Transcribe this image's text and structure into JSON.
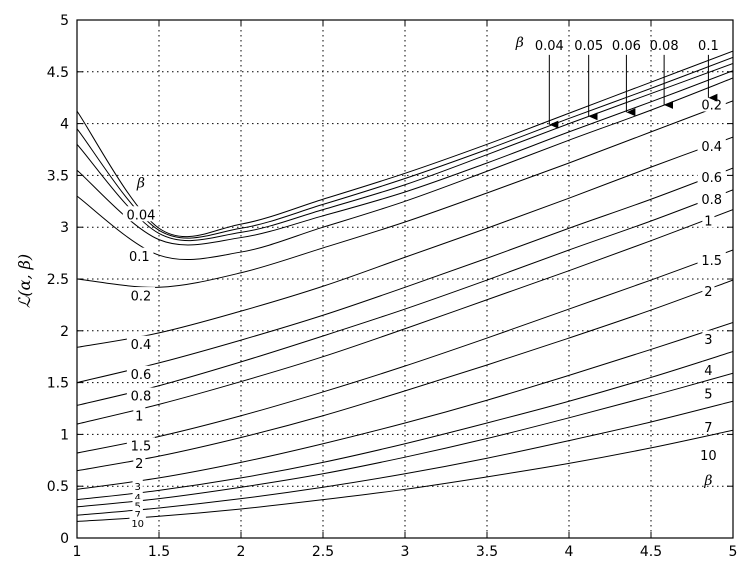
{
  "chart_data": {
    "type": "line",
    "title": "",
    "xlabel": "",
    "ylabel": "ℒ(α, β)",
    "xlim": [
      1,
      5
    ],
    "ylim": [
      0,
      5
    ],
    "grid": true,
    "x_ticks": [
      "1",
      "1.5",
      "2",
      "2.5",
      "3",
      "3.5",
      "4",
      "4.5",
      "5"
    ],
    "y_ticks": [
      "0",
      "0.5",
      "1",
      "1.5",
      "2",
      "2.5",
      "3",
      "3.5",
      "4",
      "4.5",
      "5"
    ],
    "beta_symbol": "β",
    "x": [
      1,
      1.5,
      2,
      2.5,
      3,
      3.5,
      4,
      4.5,
      5
    ],
    "series": [
      {
        "name": "0.04",
        "values": [
          4.12,
          2.99,
          3.03,
          3.27,
          3.52,
          3.8,
          4.1,
          4.4,
          4.7
        ]
      },
      {
        "name": "0.05",
        "values": [
          3.95,
          2.97,
          2.99,
          3.22,
          3.47,
          3.75,
          4.05,
          4.34,
          4.64
        ]
      },
      {
        "name": "0.06",
        "values": [
          3.8,
          2.94,
          2.95,
          3.17,
          3.41,
          3.7,
          4.0,
          4.29,
          4.58
        ]
      },
      {
        "name": "0.08",
        "values": [
          3.55,
          2.88,
          2.9,
          3.11,
          3.34,
          3.62,
          3.92,
          4.21,
          4.51
        ]
      },
      {
        "name": "0.1",
        "values": [
          3.3,
          2.73,
          2.76,
          3.0,
          3.25,
          3.54,
          3.84,
          4.13,
          4.44
        ]
      },
      {
        "name": "0.2",
        "values": [
          2.5,
          2.42,
          2.56,
          2.8,
          3.05,
          3.33,
          3.62,
          3.92,
          4.22
        ]
      },
      {
        "name": "0.4",
        "values": [
          1.84,
          1.98,
          2.19,
          2.43,
          2.71,
          2.99,
          3.28,
          3.58,
          3.87
        ]
      },
      {
        "name": "0.6",
        "values": [
          1.5,
          1.69,
          1.91,
          2.15,
          2.42,
          2.7,
          2.99,
          3.27,
          3.57
        ]
      },
      {
        "name": "0.8",
        "values": [
          1.28,
          1.47,
          1.7,
          1.95,
          2.21,
          2.49,
          2.78,
          3.06,
          3.36
        ]
      },
      {
        "name": "1",
        "values": [
          1.1,
          1.29,
          1.51,
          1.75,
          2.02,
          2.3,
          2.58,
          2.87,
          3.17
        ]
      },
      {
        "name": "1.5",
        "values": [
          0.82,
          0.98,
          1.18,
          1.41,
          1.66,
          1.93,
          2.21,
          2.49,
          2.78
        ]
      },
      {
        "name": "2",
        "values": [
          0.65,
          0.79,
          0.97,
          1.18,
          1.42,
          1.67,
          1.93,
          2.2,
          2.49
        ]
      },
      {
        "name": "3",
        "values": [
          0.47,
          0.58,
          0.73,
          0.91,
          1.11,
          1.33,
          1.57,
          1.82,
          2.08
        ]
      },
      {
        "name": "4",
        "values": [
          0.37,
          0.46,
          0.58,
          0.73,
          0.91,
          1.11,
          1.32,
          1.55,
          1.8
        ]
      },
      {
        "name": "5",
        "values": [
          0.3,
          0.38,
          0.49,
          0.62,
          0.78,
          0.96,
          1.16,
          1.37,
          1.59
        ]
      },
      {
        "name": "7",
        "values": [
          0.22,
          0.29,
          0.38,
          0.49,
          0.62,
          0.77,
          0.94,
          1.12,
          1.32
        ]
      },
      {
        "name": "10",
        "values": [
          0.16,
          0.21,
          0.28,
          0.37,
          0.47,
          0.59,
          0.72,
          0.87,
          1.04
        ]
      }
    ],
    "left_labels": [
      {
        "text": "0.04",
        "x": 1.39,
        "y": 3.12
      },
      {
        "text": "0.1",
        "x": 1.38,
        "y": 2.72
      },
      {
        "text": "0.2",
        "x": 1.39,
        "y": 2.34
      },
      {
        "text": "0.4",
        "x": 1.39,
        "y": 1.87
      },
      {
        "text": "0.6",
        "x": 1.39,
        "y": 1.58
      },
      {
        "text": "0.8",
        "x": 1.39,
        "y": 1.37
      },
      {
        "text": "1",
        "x": 1.38,
        "y": 1.18
      },
      {
        "text": "1.5",
        "x": 1.39,
        "y": 0.89
      },
      {
        "text": "2",
        "x": 1.38,
        "y": 0.72
      },
      {
        "text": "3",
        "x": 1.37,
        "y": 0.5
      },
      {
        "text": "4",
        "x": 1.37,
        "y": 0.39
      },
      {
        "text": "5",
        "x": 1.37,
        "y": 0.31
      },
      {
        "text": "7",
        "x": 1.37,
        "y": 0.23
      },
      {
        "text": "10",
        "x": 1.37,
        "y": 0.14
      }
    ],
    "right_labels": [
      {
        "text": "0.2",
        "x": 4.87,
        "y": 4.18
      },
      {
        "text": "0.4",
        "x": 4.87,
        "y": 3.78
      },
      {
        "text": "0.6",
        "x": 4.87,
        "y": 3.48
      },
      {
        "text": "0.8",
        "x": 4.87,
        "y": 3.27
      },
      {
        "text": "1",
        "x": 4.85,
        "y": 3.06
      },
      {
        "text": "1.5",
        "x": 4.87,
        "y": 2.68
      },
      {
        "text": "2",
        "x": 4.85,
        "y": 2.38
      },
      {
        "text": "3",
        "x": 4.85,
        "y": 1.92
      },
      {
        "text": "4",
        "x": 4.85,
        "y": 1.62
      },
      {
        "text": "5",
        "x": 4.85,
        "y": 1.39
      },
      {
        "text": "7",
        "x": 4.85,
        "y": 1.07
      },
      {
        "text": "10",
        "x": 4.85,
        "y": 0.8
      }
    ],
    "beta_labels": [
      {
        "x": 1.39,
        "y": 3.43
      },
      {
        "x": 4.85,
        "y": 0.56
      },
      {
        "x": 3.7,
        "y": 4.79
      }
    ],
    "arrows": [
      {
        "label": "0.04",
        "x": 3.88,
        "y_top": 4.76,
        "y_tip": 3.99
      },
      {
        "label": "0.05",
        "x": 4.12,
        "y_top": 4.76,
        "y_tip": 4.07
      },
      {
        "label": "0.06",
        "x": 4.35,
        "y_top": 4.76,
        "y_tip": 4.11
      },
      {
        "label": "0.08",
        "x": 4.58,
        "y_top": 4.76,
        "y_tip": 4.18
      },
      {
        "label": "0.1",
        "x": 4.85,
        "y_top": 4.76,
        "y_tip": 4.25
      }
    ]
  }
}
